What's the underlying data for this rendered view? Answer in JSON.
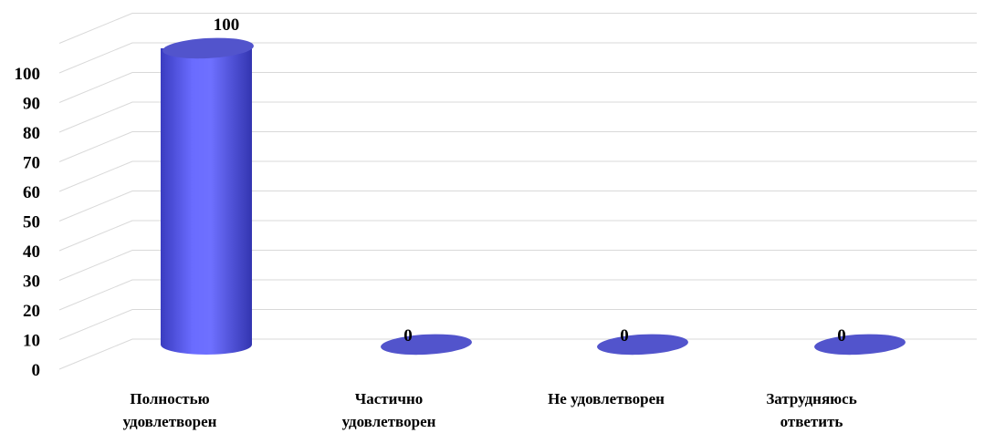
{
  "chart_data": {
    "type": "bar",
    "bar_shape": "3d-cylinder",
    "categories": [
      [
        "Полностью",
        "удовлетворен"
      ],
      [
        "Частично",
        "удовлетворен"
      ],
      [
        "Не удовлетворен"
      ],
      [
        "Затрудняюсь",
        "ответить"
      ]
    ],
    "values": [
      100,
      0,
      0,
      0
    ],
    "data_labels": [
      "100",
      "0",
      "0",
      "0"
    ],
    "title": "",
    "xlabel": "",
    "ylabel": "",
    "ylim": [
      0,
      100
    ],
    "yticks": [
      "0",
      "10",
      "20",
      "30",
      "40",
      "50",
      "60",
      "70",
      "80",
      "90",
      "100"
    ],
    "grid": true,
    "legend": "none",
    "colors": {
      "bar": "#6264ff",
      "bar_top": "#5254cc",
      "grid": "#d9d9d9"
    }
  }
}
